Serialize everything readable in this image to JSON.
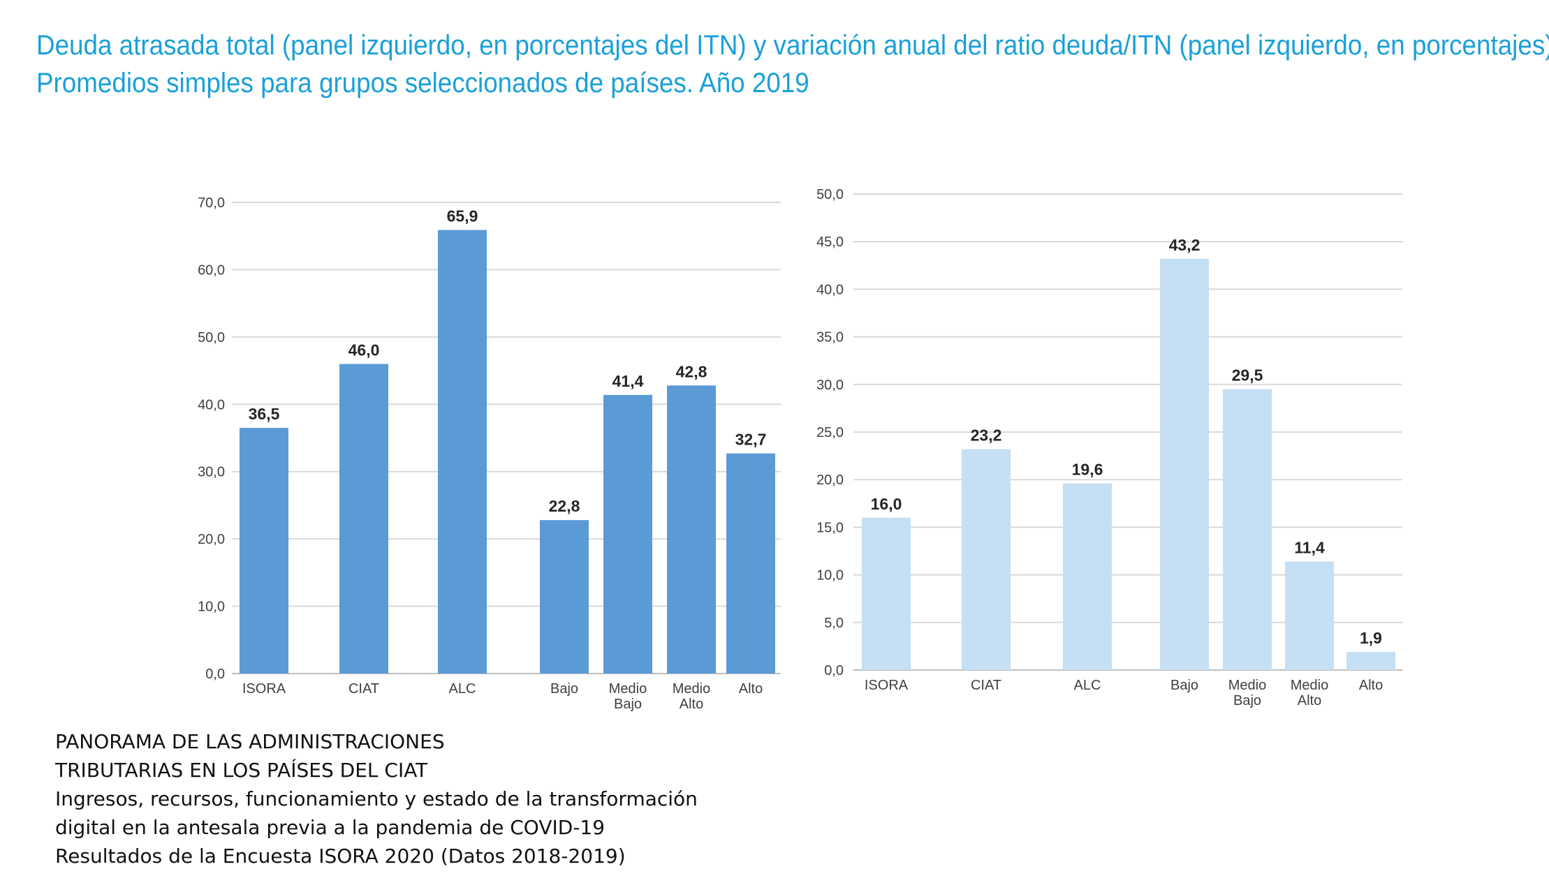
{
  "title": {
    "line1": "Deuda atrasada total (panel izquierdo, en porcentajes del ITN) y variación anual del ratio deuda/ITN (panel izquierdo, en porcentajes).",
    "line2": "Promedios simples para grupos seleccionados de países. Año 2019"
  },
  "chart_data": [
    {
      "type": "bar",
      "title": "",
      "xlabel": "",
      "ylabel": "",
      "categories": [
        "ISORA",
        "CIAT",
        "ALC",
        "Bajo",
        "Medio Bajo",
        "Medio Alto",
        "Alto"
      ],
      "category_labels": [
        [
          "ISORA"
        ],
        [
          "CIAT"
        ],
        [
          "ALC"
        ],
        [
          "Bajo"
        ],
        [
          "Medio",
          "Bajo"
        ],
        [
          "Medio",
          "Alto"
        ],
        [
          "Alto"
        ]
      ],
      "values": [
        36.5,
        46.0,
        65.9,
        22.8,
        41.4,
        42.8,
        32.7
      ],
      "value_labels": [
        "36,5",
        "46,0",
        "65,9",
        "22,8",
        "41,4",
        "42,8",
        "32,7"
      ],
      "ylim": [
        0,
        70
      ],
      "yticks": [
        0,
        10,
        20,
        30,
        40,
        50,
        60,
        70
      ],
      "ytick_labels": [
        "0,0",
        "10,0",
        "20,0",
        "30,0",
        "40,0",
        "50,0",
        "60,0",
        "70,0"
      ],
      "grid": true,
      "bar_color": "#5b9bd5"
    },
    {
      "type": "bar",
      "title": "",
      "xlabel": "",
      "ylabel": "",
      "categories": [
        "ISORA",
        "CIAT",
        "ALC",
        "Bajo",
        "Medio Bajo",
        "Medio Alto",
        "Alto"
      ],
      "category_labels": [
        [
          "ISORA"
        ],
        [
          "CIAT"
        ],
        [
          "ALC"
        ],
        [
          "Bajo"
        ],
        [
          "Medio",
          "Bajo"
        ],
        [
          "Medio",
          "Alto"
        ],
        [
          "Alto"
        ]
      ],
      "values": [
        16.0,
        23.2,
        19.6,
        43.2,
        29.5,
        11.4,
        1.9
      ],
      "value_labels": [
        "16,0",
        "23,2",
        "19,6",
        "43,2",
        "29,5",
        "11,4",
        "1,9"
      ],
      "ylim": [
        0,
        50
      ],
      "yticks": [
        0,
        5,
        10,
        15,
        20,
        25,
        30,
        35,
        40,
        45,
        50
      ],
      "ytick_labels": [
        "0,0",
        "5,0",
        "10,0",
        "15,0",
        "20,0",
        "25,0",
        "30,0",
        "35,0",
        "40,0",
        "45,0",
        "50,0"
      ],
      "grid": true,
      "bar_color": "#c5dff4"
    }
  ],
  "source": {
    "lines": [
      "PANORAMA DE LAS ADMINISTRACIONES",
      "TRIBUTARIAS  EN LOS PAÍSES DEL CIAT",
      "Ingresos, recursos, funcionamiento y estado de la transformación",
      "digital en la antesala previa a la pandemia de COVID-19",
      "Resultados de la Encuesta ISORA 2020 (Datos 2018-2019)"
    ]
  }
}
